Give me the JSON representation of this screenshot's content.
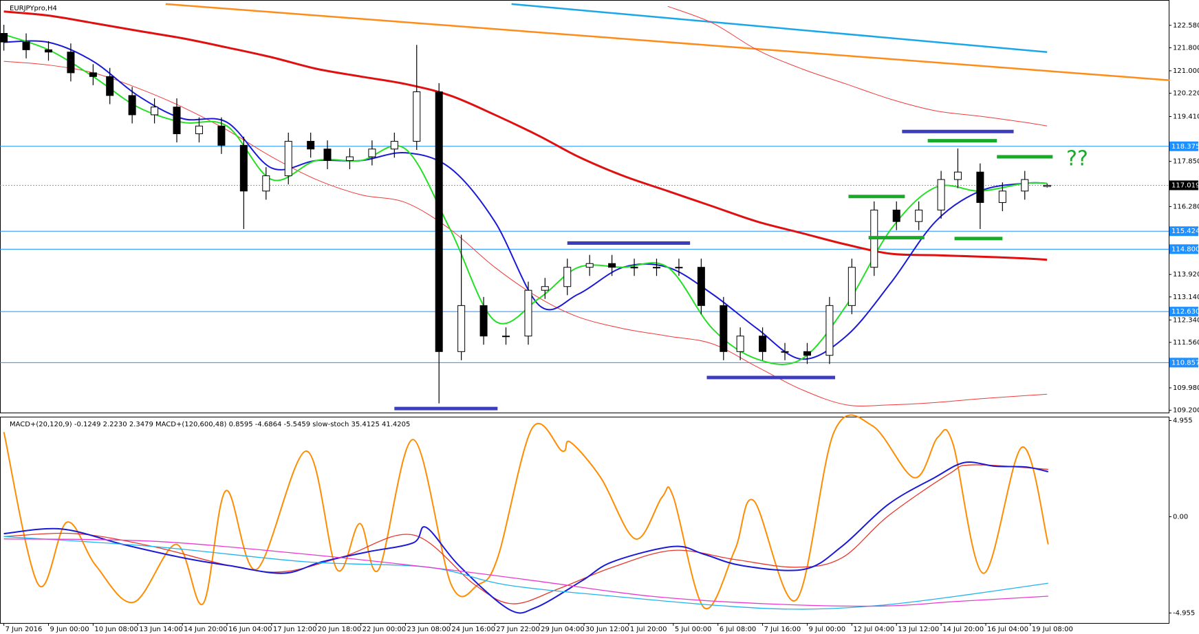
{
  "chart_data": [
    {
      "type": "candlestick",
      "title": "EURJPYpro,H4",
      "x": [
        0,
        4,
        8,
        12,
        16,
        19,
        23,
        27,
        31,
        35,
        39,
        43,
        47,
        51,
        55,
        58,
        62,
        66,
        70,
        74,
        78,
        82,
        86,
        90,
        94,
        97,
        101,
        105,
        109,
        113,
        117,
        121,
        125,
        129,
        132,
        136,
        140,
        144,
        148,
        152,
        156,
        160,
        164,
        168,
        171,
        175,
        179,
        183,
        187
      ],
      "open": [
        122.3,
        122.0,
        121.73,
        121.65,
        120.93,
        120.8,
        120.14,
        119.47,
        119.74,
        118.81,
        119.08,
        118.41,
        116.82,
        117.35,
        118.55,
        118.28,
        117.88,
        118.01,
        118.28,
        118.55,
        120.27,
        111.24,
        112.84,
        111.78,
        111.78,
        113.37,
        113.5,
        114.17,
        114.3,
        114.17,
        114.17,
        114.17,
        114.17,
        112.84,
        111.24,
        111.78,
        111.24,
        111.24,
        111.11,
        112.84,
        114.17,
        116.16,
        115.76,
        116.16,
        117.22,
        117.48,
        116.42,
        116.82,
        116.979
      ],
      "high": [
        122.6,
        122.3,
        122.03,
        121.95,
        121.23,
        121.1,
        120.44,
        120.04,
        120.04,
        119.38,
        119.38,
        118.71,
        117.65,
        118.85,
        118.85,
        118.58,
        118.31,
        118.58,
        118.85,
        121.9,
        120.57,
        115.3,
        113.14,
        112.08,
        113.67,
        113.8,
        114.47,
        114.6,
        114.6,
        114.47,
        114.47,
        114.47,
        114.47,
        113.14,
        112.08,
        112.08,
        111.54,
        111.54,
        113.14,
        114.47,
        116.46,
        116.46,
        116.46,
        117.52,
        118.3,
        117.78,
        117.12,
        117.52,
        117.076
      ],
      "low": [
        121.7,
        121.43,
        121.35,
        120.63,
        120.5,
        119.84,
        119.17,
        119.17,
        118.51,
        118.51,
        118.11,
        115.5,
        116.52,
        117.05,
        117.98,
        117.58,
        117.58,
        117.71,
        117.98,
        118.25,
        109.44,
        110.94,
        111.48,
        111.48,
        111.48,
        113.07,
        113.2,
        113.87,
        113.87,
        113.87,
        113.87,
        113.87,
        112.54,
        110.94,
        110.94,
        110.94,
        110.94,
        110.81,
        110.81,
        112.54,
        113.87,
        115.46,
        115.46,
        115.86,
        116.92,
        115.5,
        116.12,
        116.52,
        116.943
      ],
      "close": [
        122.0,
        121.73,
        121.65,
        120.93,
        120.8,
        120.14,
        119.47,
        119.74,
        118.81,
        119.08,
        118.41,
        116.82,
        117.35,
        118.55,
        118.28,
        117.88,
        118.01,
        118.28,
        118.55,
        120.27,
        111.24,
        112.84,
        111.78,
        111.78,
        113.37,
        113.5,
        114.17,
        114.3,
        114.17,
        114.17,
        114.17,
        114.17,
        112.84,
        111.24,
        111.78,
        111.24,
        111.24,
        111.11,
        112.84,
        114.17,
        116.16,
        115.76,
        116.16,
        117.22,
        117.48,
        116.42,
        116.82,
        117.22,
        117.019
      ],
      "series": [
        {
          "color": "#e01010",
          "x": [
            0,
            8,
            16,
            24,
            32,
            40,
            48,
            56,
            64,
            72,
            80,
            88,
            96,
            103,
            111,
            119,
            127,
            135,
            143,
            151,
            159,
            167,
            175,
            183,
            187
          ],
          "values": [
            123.06,
            122.92,
            122.66,
            122.39,
            122.13,
            121.81,
            121.47,
            121.07,
            120.8,
            120.54,
            120.14,
            119.47,
            118.73,
            118.01,
            117.35,
            116.82,
            116.29,
            115.76,
            115.36,
            114.96,
            114.64,
            114.59,
            114.54,
            114.48,
            114.43
          ]
        },
        {
          "color": "#f03a3a",
          "x": [
            0,
            8,
            16,
            24,
            32,
            40,
            48,
            56,
            64,
            72,
            80,
            88,
            96,
            103,
            111,
            119,
            127,
            135,
            143,
            151,
            159,
            167,
            175,
            183,
            187
          ],
          "values": [
            121.33,
            121.2,
            120.93,
            120.4,
            119.74,
            118.94,
            118.01,
            117.22,
            116.69,
            116.42,
            115.49,
            114.17,
            113.1,
            112.44,
            112.04,
            111.78,
            111.51,
            110.71,
            109.92,
            109.39,
            109.39,
            109.47,
            109.6,
            109.71,
            109.76
          ]
        },
        {
          "color": "#f03a3a",
          "x": [
            0,
            8,
            16,
            24,
            32,
            40,
            48,
            56,
            64,
            72,
            80,
            88,
            96,
            103,
            111,
            119,
            127,
            135,
            143,
            151,
            159,
            167,
            175,
            183,
            187
          ],
          "values": [
            null,
            null,
            null,
            null,
            null,
            null,
            null,
            null,
            null,
            null,
            null,
            null,
            null,
            null,
            null,
            123.24,
            122.66,
            121.73,
            121.07,
            120.54,
            120.01,
            119.61,
            119.42,
            119.21,
            119.08
          ]
        },
        {
          "color": "#1a1ad6",
          "x": [
            0,
            8,
            16,
            24,
            32,
            40,
            48,
            56,
            64,
            72,
            80,
            88,
            96,
            103,
            111,
            119,
            127,
            135,
            143,
            151,
            159,
            167,
            175,
            183,
            187
          ],
          "values": [
            121.99,
            121.99,
            121.33,
            120.14,
            119.34,
            119.21,
            117.62,
            117.88,
            117.88,
            118.15,
            117.62,
            115.76,
            112.84,
            113.24,
            114.17,
            114.17,
            113.24,
            112.04,
            110.98,
            111.78,
            113.63,
            115.76,
            116.82,
            117.09,
            117.09
          ]
        },
        {
          "color": "#22e022",
          "x": [
            0,
            8,
            16,
            24,
            32,
            40,
            48,
            56,
            64,
            72,
            80,
            88,
            96,
            103,
            111,
            119,
            127,
            135,
            143,
            151,
            159,
            167,
            175,
            183,
            187
          ],
          "values": [
            122.26,
            121.73,
            120.8,
            119.74,
            119.21,
            119.08,
            117.22,
            117.88,
            117.88,
            118.28,
            115.49,
            112.31,
            113.1,
            114.17,
            114.17,
            114.17,
            112.04,
            110.98,
            110.98,
            112.84,
            115.49,
            116.95,
            116.82,
            117.09,
            117.09
          ]
        }
      ],
      "trendlines": [
        {
          "color": "#ff8c1a",
          "x": [
            29,
            209
          ],
          "values": [
            123.32,
            120.67
          ]
        },
        {
          "color": "#1aa7e8",
          "x": [
            91,
            187
          ],
          "values": [
            123.32,
            121.65
          ]
        }
      ],
      "segments": [
        {
          "color": "#3c3cbe",
          "x": [
            70,
            88.5
          ],
          "value": 109.26
        },
        {
          "color": "#3c3cbe",
          "x": [
            101,
            123
          ],
          "value": 115.01
        },
        {
          "color": "#3c3cbe",
          "x": [
            126,
            149
          ],
          "value": 110.34
        },
        {
          "color": "#3c3cbe",
          "x": [
            161,
            181
          ],
          "value": 118.89
        },
        {
          "color": "#1aaa2a",
          "x": [
            151.4,
            161.5
          ],
          "value": 116.63
        },
        {
          "color": "#1aaa2a",
          "x": [
            155,
            165
          ],
          "value": 115.2
        },
        {
          "color": "#1aaa2a",
          "x": [
            165.6,
            178
          ],
          "value": 118.57
        },
        {
          "color": "#1aaa2a",
          "x": [
            170.4,
            179
          ],
          "value": 115.17
        },
        {
          "color": "#1aaa2a",
          "x": [
            178,
            188
          ],
          "value": 118.01
        }
      ],
      "annotation": "??",
      "levels": [
        {
          "value": 118.375,
          "label": "118.375"
        },
        115.424,
        {
          "value": 114.8,
          "label": "114.800"
        },
        {
          "value": 112.63,
          "label": "112.630"
        },
        110.857
      ],
      "current_price": 117.019,
      "ylim": [
        109.12,
        123.46
      ],
      "yticks": [
        {
          "value": 122.58,
          "label": "122.580"
        },
        {
          "value": 121.8,
          "label": "121.800"
        },
        {
          "value": 121.0,
          "label": "121.000"
        },
        {
          "value": 120.22,
          "label": "120.220"
        },
        {
          "value": 119.41,
          "label": "119.410"
        },
        {
          "value": 117.85,
          "label": "117.850"
        },
        {
          "value": 116.28,
          "label": "116.280"
        },
        {
          "value": 113.92,
          "label": "113.920"
        },
        {
          "value": 113.14,
          "label": "113.140"
        },
        {
          "value": 112.34,
          "label": "112.340"
        },
        {
          "value": 111.56,
          "label": "111.560"
        },
        {
          "value": 109.98,
          "label": "109.980"
        },
        {
          "value": 109.2,
          "label": "109.200"
        }
      ],
      "xlim": [
        -0.69,
        208.8
      ],
      "xticks": [
        {
          "value": 0,
          "label": "7 Jun 2016"
        },
        {
          "value": 8,
          "label": "9 Jun 00:00"
        },
        {
          "value": 16,
          "label": "10 Jun 08:00"
        },
        {
          "value": 24,
          "label": "13 Jun 14:00"
        },
        {
          "value": 32,
          "label": "14 Jun 20:00"
        },
        {
          "value": 40,
          "label": "16 Jun 04:00"
        },
        {
          "value": 48,
          "label": "17 Jun 12:00"
        },
        {
          "value": 56,
          "label": "20 Jun 18:00"
        },
        {
          "value": 64,
          "label": "22 Jun 00:00"
        },
        {
          "value": 72,
          "label": "23 Jun 08:00"
        },
        {
          "value": 80,
          "label": "24 Jun 16:00"
        },
        {
          "value": 88,
          "label": "27 Jun 22:00"
        },
        {
          "value": 96,
          "label": "29 Jun 04:00"
        },
        {
          "value": 104,
          "label": "30 Jun 12:00"
        },
        {
          "value": 112,
          "label": "1 Jul 20:00"
        },
        {
          "value": 120,
          "label": "5 Jul 00:00"
        },
        {
          "value": 128,
          "label": "6 Jul 08:00"
        },
        {
          "value": 136,
          "label": "7 Jul 16:00"
        },
        {
          "value": 144,
          "label": "9 Jul 00:00"
        },
        {
          "value": 152,
          "label": "12 Jul 04:00"
        },
        {
          "value": 160,
          "label": "13 Jul 12:00"
        },
        {
          "value": 168,
          "label": "14 Jul 20:00"
        },
        {
          "value": 176,
          "label": "16 Jul 04:00"
        },
        {
          "value": 184,
          "label": "19 Jul 08:00"
        }
      ]
    },
    {
      "type": "oscillator",
      "title": "MACD+(20,120,9) -0.1249 2.2230 2.3479  MACD+(120,600,48) 0.8595 -4.6864 -5.5459  slow-stoch 35.4125 41.4205",
      "ylim": [
        -5.47,
        5.15
      ],
      "yticks": [
        4.955,
        {
          "value": 0,
          "label": "0.00"
        },
        -4.955
      ],
      "series": [
        {
          "color": "#ff8c00",
          "x": [
            0,
            6.2,
            11.3,
            16.5,
            23.3,
            30.9,
            35.7,
            39.8,
            45.3,
            54.2,
            59.7,
            63.8,
            67.2,
            73.4,
            80.2,
            85.0,
            88.5,
            94.7,
            100.1,
            101.5,
            107.0,
            113.2,
            118.0,
            120.0,
            125.5,
            131.0,
            134.4,
            142.0,
            148.8,
            155.7,
            163.2,
            167.4,
            170.1,
            175.6,
            182.5,
            187.2
          ],
          "values": [
            4.36,
            -3.5,
            -0.28,
            -2.52,
            -4.4,
            -1.42,
            -4.48,
            1.34,
            -2.71,
            3.38,
            -2.71,
            -0.35,
            -2.71,
            3.97,
            -3.5,
            -3.5,
            -2.12,
            4.56,
            3.38,
            3.85,
            2.01,
            -1.14,
            1.02,
            1.02,
            -4.68,
            -1.73,
            0.83,
            -4.29,
            4.36,
            4.68,
            2.01,
            4.09,
            3.78,
            -2.91,
            3.58,
            -1.42
          ]
        },
        {
          "color": "#e8372a",
          "x": [
            0,
            13.0,
            26.7,
            40.5,
            50.1,
            61.0,
            73.4,
            84.4,
            91.2,
            99.5,
            109.1,
            120.0,
            131.0,
            142.0,
            150.2,
            158.5,
            169.4,
            173.6,
            187.2
          ],
          "values": [
            -1.02,
            -0.87,
            -1.53,
            -2.52,
            -2.83,
            -2.04,
            -0.94,
            -3.5,
            -4.48,
            -3.7,
            -2.6,
            -1.73,
            -2.2,
            -2.6,
            -2.12,
            0.04,
            2.2,
            2.67,
            2.44
          ]
        },
        {
          "color": "#1a1ad6",
          "x": [
            0,
            10.3,
            21.3,
            32.2,
            40.5,
            50.1,
            57.0,
            65.2,
            73.4,
            75.7,
            81.6,
            90.5,
            95.3,
            103.6,
            109.1,
            120.0,
            125.5,
            132.4,
            143.4,
            150.2,
            158.5,
            166.8,
            172.2,
            177.7,
            183.2,
            187.2
          ],
          "values": [
            -0.87,
            -0.63,
            -1.42,
            -2.12,
            -2.52,
            -2.91,
            -2.32,
            -1.81,
            -1.34,
            -0.55,
            -2.52,
            -4.76,
            -4.68,
            -3.3,
            -2.32,
            -1.53,
            -1.93,
            -2.52,
            -2.71,
            -1.53,
            0.63,
            2.01,
            2.79,
            2.6,
            2.56,
            2.32
          ]
        },
        {
          "color": "#1eb4f0",
          "x": [
            0,
            26.7,
            54.2,
            76.1,
            89.9,
            109.1,
            129.6,
            143.4,
            157.1,
            170.8,
            187.2
          ],
          "values": [
            -1.02,
            -1.53,
            -2.32,
            -2.6,
            -3.5,
            -4.09,
            -4.6,
            -4.76,
            -4.56,
            -4.09,
            -3.42
          ]
        },
        {
          "color": "#e83ad0",
          "x": [
            0,
            26.7,
            54.2,
            76.1,
            95.3,
            115.9,
            136.5,
            157.1,
            170.8,
            187.2
          ],
          "values": [
            -1.14,
            -1.26,
            -1.93,
            -2.6,
            -3.3,
            -4.09,
            -4.48,
            -4.6,
            -4.36,
            -4.09
          ]
        }
      ]
    }
  ]
}
